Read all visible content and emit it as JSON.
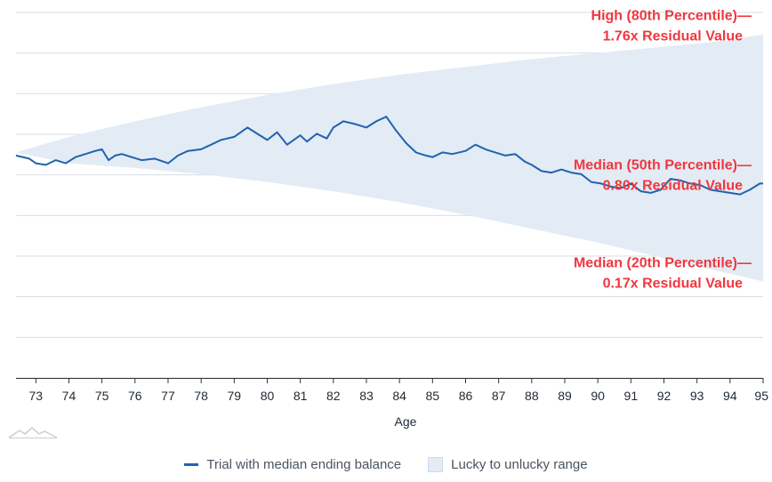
{
  "chart_data": {
    "type": "area",
    "title": "",
    "xlabel": "Age",
    "ylabel": "",
    "xlim": [
      72.4,
      95.0
    ],
    "ylim": [
      -0.45,
      1.9
    ],
    "x_ticks": [
      "73",
      "74",
      "75",
      "76",
      "77",
      "78",
      "79",
      "80",
      "81",
      "82",
      "83",
      "84",
      "85",
      "86",
      "87",
      "88",
      "89",
      "90",
      "91",
      "92",
      "93",
      "94",
      "95"
    ],
    "grid": true,
    "band": {
      "name": "Lucky to unlucky range",
      "color": "#e3ebf5",
      "x": [
        72.4,
        74,
        76,
        78,
        80,
        82,
        84,
        86,
        88,
        90,
        92,
        94,
        95
      ],
      "high": [
        1.0,
        1.1,
        1.2,
        1.29,
        1.37,
        1.44,
        1.5,
        1.55,
        1.6,
        1.64,
        1.68,
        1.72,
        1.76
      ],
      "low": [
        1.0,
        0.93,
        0.9,
        0.86,
        0.81,
        0.75,
        0.68,
        0.6,
        0.51,
        0.42,
        0.32,
        0.22,
        0.17
      ]
    },
    "series": [
      {
        "name": "Trial with median ending balance",
        "color": "#1f63ad",
        "x": [
          72.4,
          72.8,
          73.0,
          73.3,
          73.6,
          73.9,
          74.2,
          74.5,
          74.8,
          75.0,
          75.2,
          75.4,
          75.6,
          75.9,
          76.2,
          76.6,
          77.0,
          77.3,
          77.6,
          78.0,
          78.3,
          78.6,
          79.0,
          79.4,
          79.7,
          80.0,
          80.3,
          80.6,
          81.0,
          81.2,
          81.5,
          81.8,
          82.0,
          82.3,
          82.7,
          83.0,
          83.3,
          83.6,
          83.9,
          84.2,
          84.5,
          84.8,
          85.0,
          85.3,
          85.6,
          86.0,
          86.3,
          86.6,
          86.9,
          87.2,
          87.5,
          87.8,
          88.0,
          88.3,
          88.6,
          88.9,
          89.2,
          89.5,
          89.8,
          90.1,
          90.4,
          90.7,
          91.0,
          91.3,
          91.6,
          91.9,
          92.2,
          92.5,
          92.8,
          93.1,
          93.4,
          93.7,
          94.0,
          94.3,
          94.6,
          94.9,
          95.0
        ],
        "y": [
          0.98,
          0.96,
          0.93,
          0.92,
          0.95,
          0.93,
          0.97,
          0.99,
          1.01,
          1.02,
          0.95,
          0.98,
          0.99,
          0.97,
          0.95,
          0.96,
          0.93,
          0.98,
          1.01,
          1.02,
          1.05,
          1.08,
          1.1,
          1.16,
          1.12,
          1.08,
          1.13,
          1.05,
          1.11,
          1.07,
          1.12,
          1.09,
          1.16,
          1.2,
          1.18,
          1.16,
          1.2,
          1.23,
          1.14,
          1.06,
          1.0,
          0.98,
          0.97,
          1.0,
          0.99,
          1.01,
          1.05,
          1.02,
          1.0,
          0.98,
          0.99,
          0.94,
          0.92,
          0.88,
          0.87,
          0.89,
          0.87,
          0.86,
          0.81,
          0.8,
          0.78,
          0.77,
          0.8,
          0.75,
          0.74,
          0.76,
          0.83,
          0.82,
          0.8,
          0.79,
          0.76,
          0.75,
          0.74,
          0.73,
          0.76,
          0.8,
          0.8
        ]
      }
    ],
    "annotations": [
      {
        "lines": [
          "High (80th Percentile)—",
          "1.76x Residual Value"
        ],
        "x": 95.0,
        "y": 1.76
      },
      {
        "lines": [
          "Median (50th Percentile)—",
          "0.80x Residual Value"
        ],
        "x": 95.0,
        "y": 0.8
      },
      {
        "lines": [
          "Median (20th Percentile)—",
          "0.17x Residual Value"
        ],
        "x": 95.0,
        "y": 0.17
      }
    ],
    "legend": {
      "placement": "bottom-center",
      "entries": [
        "Trial with median ending balance",
        "Lucky to unlucky range"
      ]
    }
  },
  "watermark": {
    "icon": "mountain-logo-icon"
  }
}
